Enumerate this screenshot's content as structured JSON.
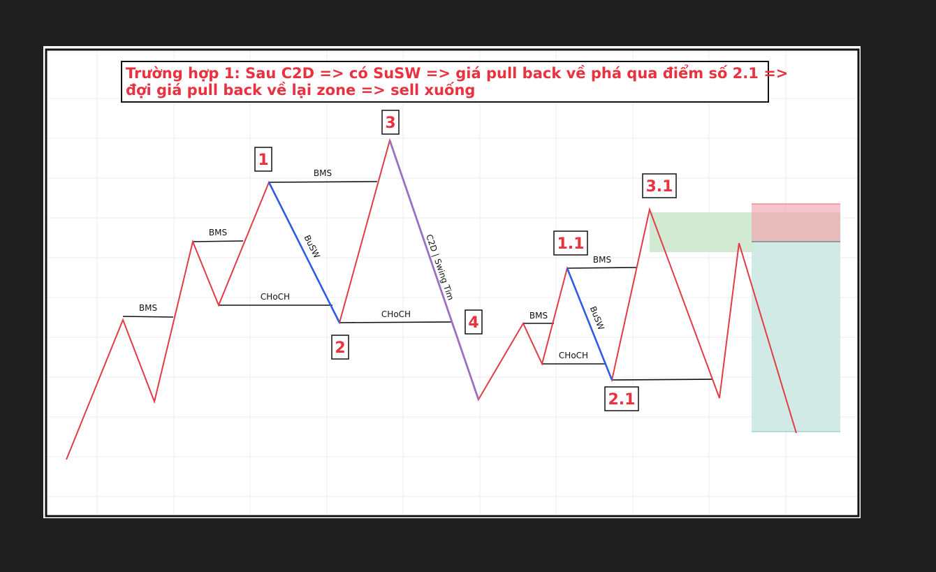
{
  "title": {
    "line1": "Trường hợp 1: Sau C2D => có SuSW => giá pull back về phá qua điểm số 2.1 =>",
    "line2": "đợi giá pull back về lại zone => sell xuống"
  },
  "points": {
    "p1": "1",
    "p2": "2",
    "p3": "3",
    "p4": "4",
    "p1_1": "1.1",
    "p2_1": "2.1",
    "p3_1": "3.1"
  },
  "labels": {
    "bms": "BMS",
    "choch": "CHoCH",
    "busw": "BuSW",
    "c2d": "C2D | Swing Tim"
  },
  "colors": {
    "background": "#1f1f1f",
    "chart_bg": "#ffffff",
    "price_line": "#e23b46",
    "busw_line": "#2f5be8",
    "c2d_line": "#9b6fc4",
    "label_red": "#e8323f",
    "supply_zone": "#cfe9cf",
    "stop_zone": "#f7c4cb",
    "target_zone": "#cfe9e4"
  }
}
